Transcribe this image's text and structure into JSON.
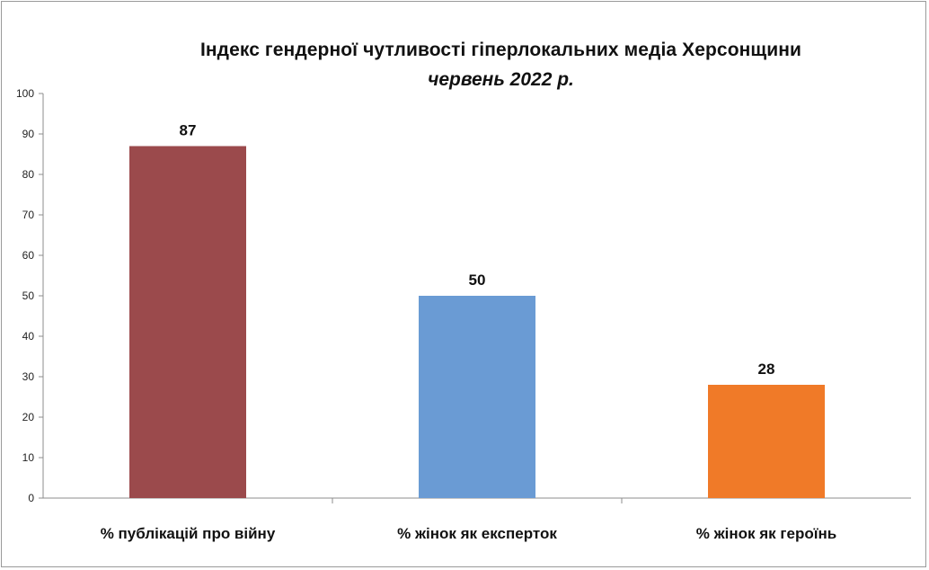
{
  "chart_data": {
    "type": "bar",
    "title": "Індекс гендерної чутливості гіперлокальних медіа Херсонщини",
    "subtitle": "червень 2022 р.",
    "categories": [
      "% публікацій  про війну",
      "% жінок як експерток",
      "% жінок як героїнь"
    ],
    "values": [
      87,
      50,
      28
    ],
    "data_labels": [
      "87",
      "50",
      "28"
    ],
    "colors": [
      "#9b4a4c",
      "#6a9bd4",
      "#f07a28"
    ],
    "ylim": [
      0,
      100
    ],
    "yticks": [
      0,
      10,
      20,
      30,
      40,
      50,
      60,
      70,
      80,
      90,
      100
    ],
    "xlabel": "",
    "ylabel": "",
    "grid": false,
    "legend": "none"
  }
}
